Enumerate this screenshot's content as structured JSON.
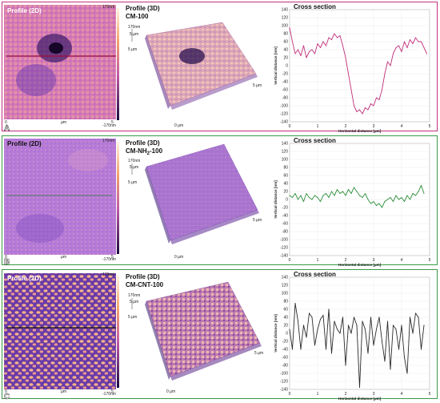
{
  "panels": [
    {
      "id": "A",
      "label": "A",
      "border_color": "#c2307c",
      "profile2d": {
        "title": "Profile (2D)",
        "zmax": "170nm",
        "zmin": "-170nm",
        "x0": "0",
        "xunit": "µm",
        "x5": "5"
      },
      "profile3d": {
        "title": "Profile (3D)",
        "sample_pre": "CM-100",
        "sample_sub": "",
        "sample_post": "",
        "z": "170nm",
        "scale": "5 µm",
        "yt": "5 µm",
        "x0": "0 µm",
        "xt": "5 µm"
      }
    },
    {
      "id": "B",
      "label": "B",
      "border_color": "#3a9a46",
      "profile2d": {
        "title": "Profile (2D)",
        "zmax": "170nm",
        "zmin": "-170nm",
        "x0": "0",
        "xunit": "µm",
        "x5": "5"
      },
      "profile3d": {
        "title": "Profile (3D)",
        "sample_pre": "CM-NH",
        "sample_sub": "2",
        "sample_post": "-100",
        "z": "170nm",
        "scale": "5 µm",
        "yt": "5 µm",
        "x0": "0 µm",
        "xt": "5 µm"
      }
    },
    {
      "id": "C",
      "label": "C",
      "border_color": "#3a9a46",
      "profile2d": {
        "title": "Profile (2D)",
        "zmax": "170nm",
        "zmin": "-170nm",
        "x0": "0",
        "xunit": "µm",
        "x5": "5"
      },
      "profile3d": {
        "title": "Profile (3D)",
        "sample_pre": "CM-CNT-100",
        "sample_sub": "",
        "sample_post": "",
        "z": "170nm",
        "scale": "5 µm",
        "yt": "5 µm",
        "x0": "0 µm",
        "xt": "5 µm"
      }
    }
  ],
  "chart_data": [
    {
      "type": "line",
      "title": "Cross section",
      "xlabel": "Horizontal distance [µm]",
      "ylabel": "Vertical distance [nm]",
      "xlim": [
        0,
        5
      ],
      "ylim": [
        -140,
        140
      ],
      "xticks": [
        0,
        1,
        2,
        3,
        4,
        5
      ],
      "yticks": [
        140,
        120,
        100,
        80,
        60,
        40,
        20,
        0,
        -20,
        -40,
        -60,
        -80,
        -100,
        -120,
        -140
      ],
      "grid": true,
      "series": [
        {
          "color": "#c2307c",
          "x": [
            0,
            0.1,
            0.2,
            0.3,
            0.4,
            0.5,
            0.6,
            0.7,
            0.8,
            0.9,
            1.0,
            1.1,
            1.2,
            1.3,
            1.4,
            1.5,
            1.6,
            1.7,
            1.8,
            1.9,
            2.0,
            2.1,
            2.2,
            2.3,
            2.4,
            2.5,
            2.6,
            2.7,
            2.8,
            2.9,
            3.0,
            3.1,
            3.2,
            3.3,
            3.4,
            3.5,
            3.6,
            3.7,
            3.8,
            3.9,
            4.0,
            4.1,
            4.2,
            4.3,
            4.4,
            4.5,
            4.6,
            4.7,
            4.8,
            4.9
          ],
          "y": [
            95,
            60,
            30,
            40,
            25,
            50,
            20,
            35,
            40,
            30,
            55,
            45,
            60,
            50,
            70,
            65,
            80,
            70,
            75,
            50,
            20,
            -20,
            -60,
            -100,
            -115,
            -110,
            -120,
            -105,
            -110,
            -95,
            -100,
            -80,
            -85,
            -60,
            -20,
            10,
            0,
            30,
            45,
            50,
            35,
            60,
            45,
            65,
            55,
            70,
            60,
            60,
            45,
            30
          ]
        }
      ]
    },
    {
      "type": "line",
      "title": "Cross section",
      "xlabel": "Horizontal distance [µm]",
      "ylabel": "Vertical distance [nm]",
      "xlim": [
        0,
        5
      ],
      "ylim": [
        -140,
        140
      ],
      "xticks": [
        0,
        1,
        2,
        3,
        4,
        5
      ],
      "yticks": [
        140,
        120,
        100,
        80,
        60,
        40,
        20,
        0,
        -20,
        -40,
        -60,
        -80,
        -100,
        -120,
        -140
      ],
      "grid": true,
      "series": [
        {
          "color": "#2e8f3a",
          "x": [
            0,
            0.1,
            0.2,
            0.3,
            0.4,
            0.5,
            0.6,
            0.7,
            0.8,
            0.9,
            1.0,
            1.1,
            1.2,
            1.3,
            1.4,
            1.5,
            1.6,
            1.7,
            1.8,
            1.9,
            2.0,
            2.1,
            2.2,
            2.3,
            2.4,
            2.5,
            2.6,
            2.7,
            2.8,
            2.9,
            3.0,
            3.1,
            3.2,
            3.3,
            3.4,
            3.5,
            3.6,
            3.7,
            3.8,
            3.9,
            4.0,
            4.1,
            4.2,
            4.3,
            4.4,
            4.5,
            4.6,
            4.7,
            4.8
          ],
          "y": [
            10,
            5,
            15,
            0,
            10,
            -5,
            15,
            5,
            0,
            10,
            5,
            -5,
            10,
            15,
            5,
            20,
            10,
            25,
            15,
            20,
            10,
            25,
            15,
            30,
            20,
            10,
            5,
            15,
            0,
            -10,
            -5,
            -15,
            -10,
            -20,
            -5,
            0,
            5,
            -5,
            10,
            0,
            5,
            -5,
            10,
            0,
            15,
            10,
            20,
            35,
            15
          ]
        }
      ]
    },
    {
      "type": "line",
      "title": "Cross section",
      "xlabel": "Horizontal distance [µm]",
      "ylabel": "Vertical distance [nm]",
      "xlim": [
        0,
        5
      ],
      "ylim": [
        -140,
        140
      ],
      "xticks": [
        0,
        1,
        2,
        3,
        4,
        5
      ],
      "yticks": [
        140,
        120,
        100,
        80,
        60,
        40,
        20,
        0,
        -20,
        -40,
        -60,
        -80,
        -100,
        -120,
        -140
      ],
      "grid": true,
      "series": [
        {
          "color": "#2a2a2a",
          "x": [
            0,
            0.1,
            0.2,
            0.3,
            0.4,
            0.5,
            0.6,
            0.7,
            0.8,
            0.9,
            1.0,
            1.1,
            1.2,
            1.3,
            1.4,
            1.5,
            1.6,
            1.7,
            1.8,
            1.9,
            2.0,
            2.1,
            2.2,
            2.3,
            2.4,
            2.5,
            2.6,
            2.7,
            2.8,
            2.9,
            3.0,
            3.1,
            3.2,
            3.3,
            3.4,
            3.5,
            3.6,
            3.7,
            3.8,
            3.9,
            4.0,
            4.1,
            4.2,
            4.3,
            4.4,
            4.5,
            4.6,
            4.7,
            4.8
          ],
          "y": [
            10,
            -40,
            75,
            30,
            -40,
            20,
            -10,
            50,
            40,
            -30,
            10,
            35,
            45,
            -40,
            60,
            -50,
            30,
            10,
            0,
            40,
            -80,
            20,
            0,
            40,
            20,
            -135,
            30,
            10,
            -50,
            40,
            -30,
            10,
            40,
            -20,
            -70,
            30,
            -90,
            20,
            10,
            -40,
            20,
            -60,
            -100,
            40,
            0,
            50,
            40,
            -40,
            20
          ]
        }
      ]
    }
  ]
}
